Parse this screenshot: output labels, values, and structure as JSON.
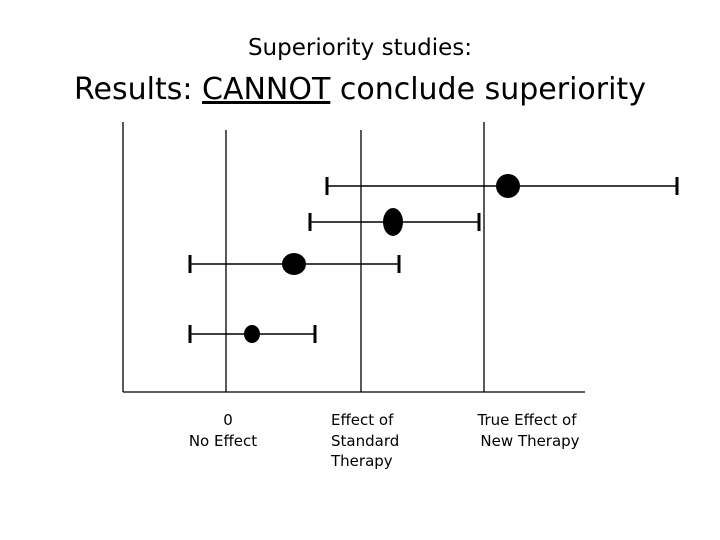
{
  "title": {
    "line1": "Superiority studies:",
    "line2": {
      "prefix": "Results: ",
      "emphasis": "CANNOT",
      "suffix": " conclude superiority"
    }
  },
  "axis_labels": [
    {
      "lines": [
        "0",
        "No Effect"
      ]
    },
    {
      "lines": [
        "Effect of",
        "Standard",
        "Therapy"
      ]
    },
    {
      "lines": [
        "True Effect of",
        "New Therapy"
      ]
    }
  ]
}
